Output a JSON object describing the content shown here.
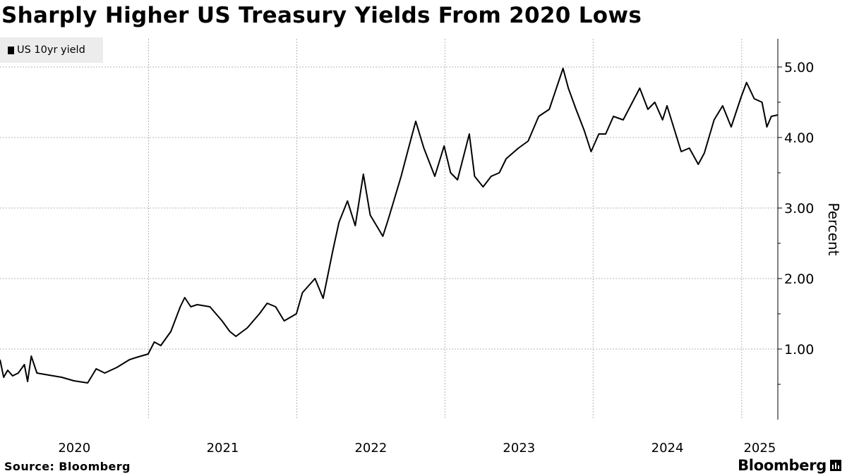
{
  "header": {
    "title": "Sharply Higher US Treasury Yields From 2020 Lows"
  },
  "footer": {
    "source": "Source: Bloomberg",
    "brand": "Bloomberg",
    "brand_icon": "bloomberg-bar-chart-icon"
  },
  "chart_data": {
    "type": "line",
    "title": "Sharply Higher US Treasury Yields From 2020 Lows",
    "xlabel": "",
    "ylabel": "Percent",
    "ylim": [
      0.0,
      5.4
    ],
    "xlim": [
      "2020-01-01",
      "2025-03-31"
    ],
    "yticks": [
      1.0,
      2.0,
      3.0,
      4.0,
      5.0
    ],
    "ytick_labels": [
      "1.00",
      "2.00",
      "3.00",
      "4.00",
      "5.00"
    ],
    "xtick_labels": [
      "2020",
      "2021",
      "2022",
      "2023",
      "2024",
      "2025"
    ],
    "grid": true,
    "legend_position": "top-left",
    "series": [
      {
        "name": "US 10yr yield",
        "color": "#000000",
        "points": [
          [
            "2020-01-01",
            0.85
          ],
          [
            "2020-01-10",
            0.6
          ],
          [
            "2020-01-20",
            0.7
          ],
          [
            "2020-02-01",
            0.62
          ],
          [
            "2020-02-15",
            0.66
          ],
          [
            "2020-03-01",
            0.78
          ],
          [
            "2020-03-09",
            0.54
          ],
          [
            "2020-03-18",
            0.9
          ],
          [
            "2020-04-01",
            0.66
          ],
          [
            "2020-05-01",
            0.63
          ],
          [
            "2020-06-01",
            0.6
          ],
          [
            "2020-07-01",
            0.55
          ],
          [
            "2020-08-04",
            0.52
          ],
          [
            "2020-08-25",
            0.72
          ],
          [
            "2020-09-15",
            0.66
          ],
          [
            "2020-10-15",
            0.74
          ],
          [
            "2020-11-15",
            0.85
          ],
          [
            "2020-12-01",
            0.88
          ],
          [
            "2020-12-31",
            0.93
          ],
          [
            "2021-01-15",
            1.1
          ],
          [
            "2021-01-31",
            1.05
          ],
          [
            "2021-02-25",
            1.25
          ],
          [
            "2021-03-20",
            1.6
          ],
          [
            "2021-03-31",
            1.73
          ],
          [
            "2021-04-15",
            1.6
          ],
          [
            "2021-05-01",
            1.63
          ],
          [
            "2021-06-01",
            1.6
          ],
          [
            "2021-07-01",
            1.4
          ],
          [
            "2021-07-20",
            1.25
          ],
          [
            "2021-08-04",
            1.18
          ],
          [
            "2021-09-01",
            1.3
          ],
          [
            "2021-10-01",
            1.5
          ],
          [
            "2021-10-20",
            1.65
          ],
          [
            "2021-11-10",
            1.6
          ],
          [
            "2021-12-01",
            1.4
          ],
          [
            "2021-12-31",
            1.5
          ],
          [
            "2022-01-15",
            1.8
          ],
          [
            "2022-02-15",
            2.0
          ],
          [
            "2022-03-07",
            1.72
          ],
          [
            "2022-03-31",
            2.4
          ],
          [
            "2022-04-15",
            2.8
          ],
          [
            "2022-05-06",
            3.1
          ],
          [
            "2022-05-25",
            2.75
          ],
          [
            "2022-06-14",
            3.48
          ],
          [
            "2022-07-01",
            2.9
          ],
          [
            "2022-08-01",
            2.6
          ],
          [
            "2022-08-15",
            2.85
          ],
          [
            "2022-09-15",
            3.45
          ],
          [
            "2022-10-01",
            3.8
          ],
          [
            "2022-10-21",
            4.23
          ],
          [
            "2022-11-10",
            3.85
          ],
          [
            "2022-12-07",
            3.45
          ],
          [
            "2022-12-30",
            3.88
          ],
          [
            "2023-01-15",
            3.5
          ],
          [
            "2023-02-01",
            3.4
          ],
          [
            "2023-03-02",
            4.05
          ],
          [
            "2023-03-15",
            3.45
          ],
          [
            "2023-04-05",
            3.3
          ],
          [
            "2023-04-25",
            3.45
          ],
          [
            "2023-05-15",
            3.5
          ],
          [
            "2023-06-01",
            3.7
          ],
          [
            "2023-07-01",
            3.85
          ],
          [
            "2023-07-25",
            3.95
          ],
          [
            "2023-08-20",
            4.3
          ],
          [
            "2023-09-15",
            4.4
          ],
          [
            "2023-10-19",
            4.98
          ],
          [
            "2023-11-01",
            4.7
          ],
          [
            "2023-11-20",
            4.4
          ],
          [
            "2023-12-10",
            4.1
          ],
          [
            "2023-12-27",
            3.8
          ],
          [
            "2024-01-15",
            4.05
          ],
          [
            "2024-02-01",
            4.05
          ],
          [
            "2024-02-20",
            4.3
          ],
          [
            "2024-03-15",
            4.25
          ],
          [
            "2024-04-25",
            4.7
          ],
          [
            "2024-05-15",
            4.4
          ],
          [
            "2024-06-01",
            4.5
          ],
          [
            "2024-06-20",
            4.25
          ],
          [
            "2024-07-01",
            4.45
          ],
          [
            "2024-08-05",
            3.8
          ],
          [
            "2024-08-25",
            3.85
          ],
          [
            "2024-09-16",
            3.62
          ],
          [
            "2024-10-01",
            3.78
          ],
          [
            "2024-10-25",
            4.25
          ],
          [
            "2024-11-15",
            4.45
          ],
          [
            "2024-12-06",
            4.15
          ],
          [
            "2024-12-31",
            4.58
          ],
          [
            "2025-01-13",
            4.78
          ],
          [
            "2025-02-01",
            4.55
          ],
          [
            "2025-02-20",
            4.5
          ],
          [
            "2025-03-04",
            4.15
          ],
          [
            "2025-03-15",
            4.3
          ],
          [
            "2025-03-31",
            4.32
          ]
        ]
      }
    ]
  }
}
